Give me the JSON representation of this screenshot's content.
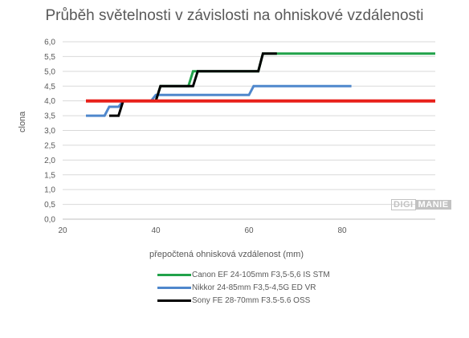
{
  "chart_data": {
    "type": "line",
    "title": "Průběh světelnosti v závislosti na ohniskové vzdálenosti",
    "xlabel": "přepočtená ohnisková vzdálenost (mm)",
    "ylabel": "clona",
    "xlim": [
      20,
      100
    ],
    "ylim": [
      0,
      6
    ],
    "x_ticks": [
      "20",
      "40",
      "60",
      "80"
    ],
    "y_ticks": [
      "0,0",
      "0,5",
      "1,0",
      "1,5",
      "2,0",
      "2,5",
      "3,0",
      "3,5",
      "4,0",
      "4,5",
      "5,0",
      "5,5",
      "6,0"
    ],
    "grid": true,
    "legend_position": "bottom",
    "series": [
      {
        "name": "Canon EF 24-105mm F3,5-5,6 IS STM",
        "color": "#21a24a",
        "in_legend": true,
        "points": [
          [
            25,
            4.0
          ],
          [
            29,
            4.0
          ],
          [
            30,
            4.0
          ],
          [
            38,
            4.0
          ],
          [
            40,
            4.0
          ],
          [
            41,
            4.5
          ],
          [
            47,
            4.5
          ],
          [
            48,
            5.0
          ],
          [
            54,
            5.0
          ],
          [
            55,
            5.0
          ],
          [
            62,
            5.0
          ],
          [
            63,
            5.6
          ],
          [
            69,
            5.6
          ],
          [
            70,
            5.6
          ],
          [
            100,
            5.6
          ]
        ]
      },
      {
        "name": "Nikkor 24-85mm F3,5-4,5G ED VR",
        "color": "#4f87cc",
        "in_legend": true,
        "points": [
          [
            25,
            3.5
          ],
          [
            29,
            3.5
          ],
          [
            30,
            3.8
          ],
          [
            32,
            3.8
          ],
          [
            33,
            4.0
          ],
          [
            39,
            4.0
          ],
          [
            40,
            4.2
          ],
          [
            53,
            4.2
          ],
          [
            60,
            4.2
          ],
          [
            61,
            4.5
          ],
          [
            82,
            4.5
          ]
        ]
      },
      {
        "name": "Sony FE 28-70mm F3.5-5.6 OSS",
        "color": "#000000",
        "in_legend": true,
        "points": [
          [
            30,
            3.5
          ],
          [
            32,
            3.5
          ],
          [
            33,
            4.0
          ],
          [
            40,
            4.0
          ],
          [
            41,
            4.5
          ],
          [
            47,
            4.5
          ],
          [
            48,
            4.5
          ],
          [
            49,
            5.0
          ],
          [
            55,
            5.0
          ],
          [
            56,
            5.0
          ],
          [
            62,
            5.0
          ],
          [
            63,
            5.6
          ],
          [
            66,
            5.6
          ]
        ]
      },
      {
        "name": "",
        "color": "#e8201a",
        "in_legend": false,
        "points": [
          [
            25,
            4.0
          ],
          [
            100,
            4.0
          ]
        ]
      }
    ]
  },
  "watermark": {
    "part1": "DIGI",
    "part2": "MANIE"
  }
}
